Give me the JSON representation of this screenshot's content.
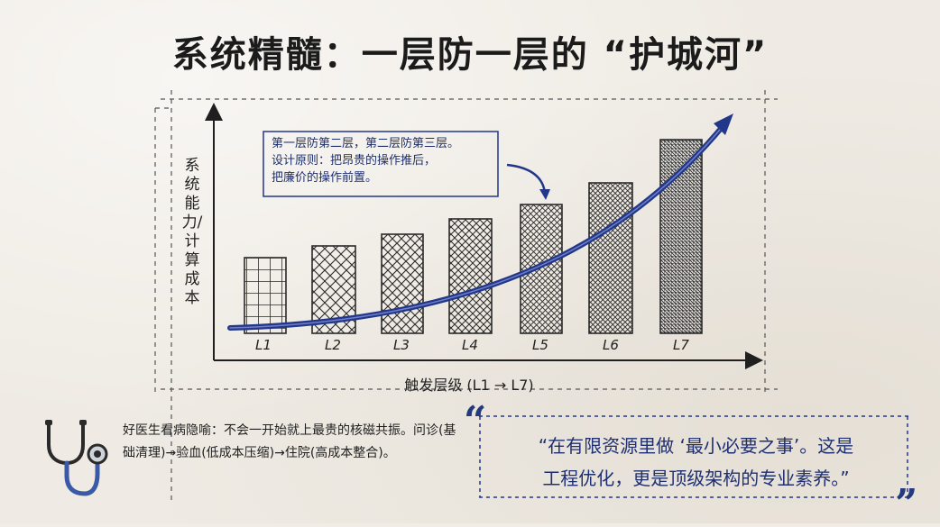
{
  "title": "系统精髓：一层防一层的 “护城河”",
  "diagram": {
    "y_axis_label": "系统能力/计算成本",
    "x_axis_label": "触发层级  (L1 → L7)",
    "levels": [
      "L1",
      "L2",
      "L3",
      "L4",
      "L5",
      "L6",
      "L7"
    ],
    "callout_lines": [
      "第一层防第二层，第二层防第三层。",
      "设计原则：把昂贵的操作推后，",
      "把廉价的操作前置。"
    ],
    "accent_color": "#23378a"
  },
  "analogy": {
    "icon": "stethoscope-icon",
    "text": "好医生看病隐喻：不会一开始就上最贵的核磁共振。问诊(基础清理)→验血(低成本压缩)→住院(高成本整合)。"
  },
  "quote": {
    "open_mark": "“",
    "close_mark": "”",
    "line1": "“在有限资源里做 ‘最小必要之事’。这是",
    "line2": "工程优化，更是顶级架构的专业素养。”"
  }
}
